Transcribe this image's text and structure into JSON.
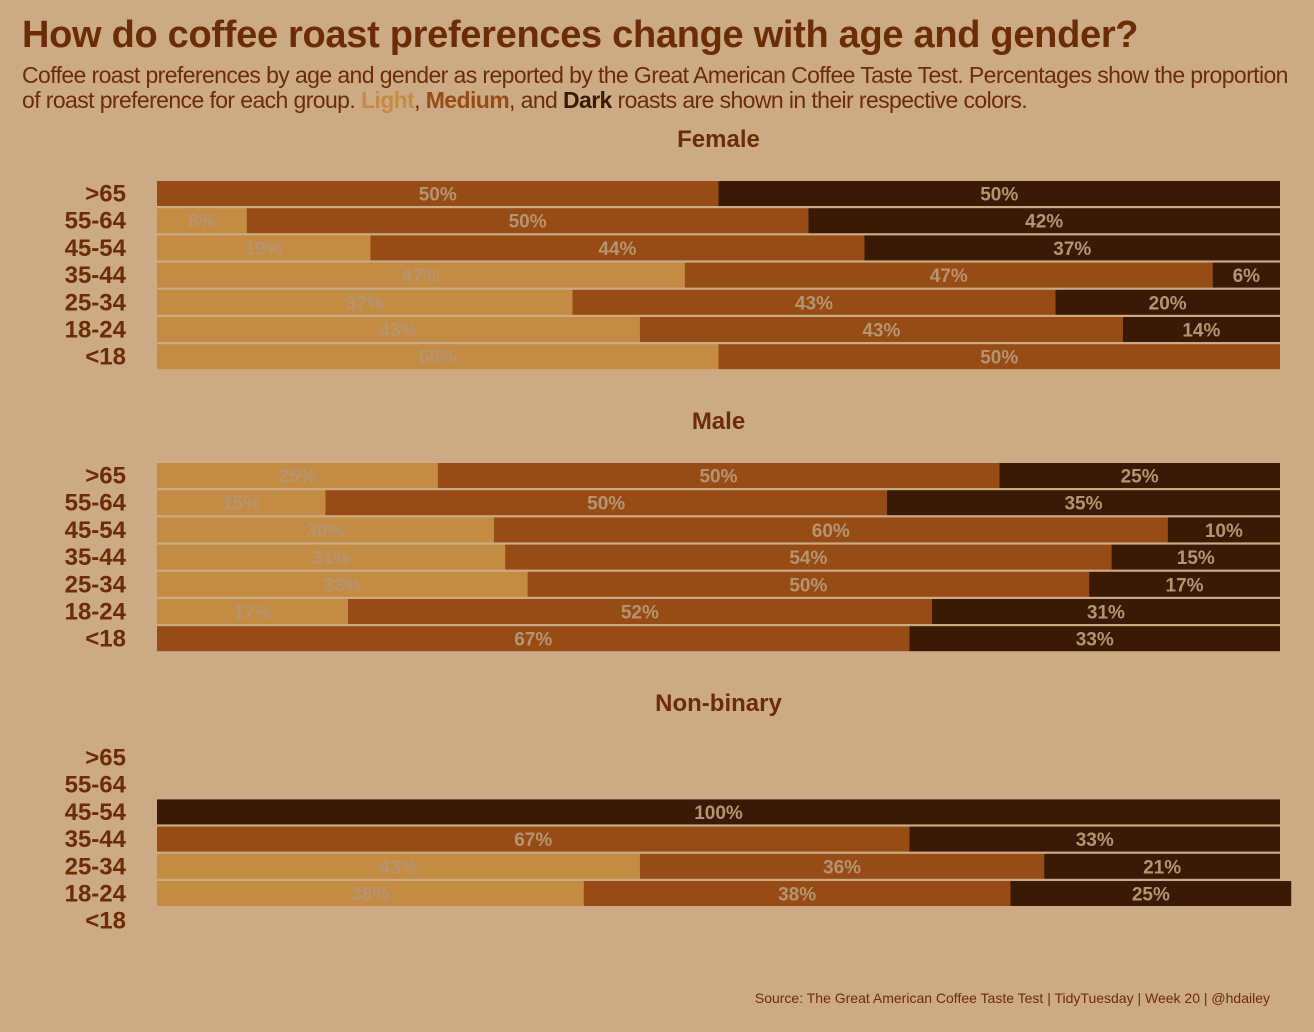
{
  "title": "How do coffee roast preferences change with age and gender?",
  "subtitle": {
    "line_start": "Coffee roast preferences by age and gender as reported by the Great American Coffee Taste Test. Percentages show the proportion of roast preference for each group. ",
    "light": "Light",
    "sep1": ", ",
    "medium": "Medium",
    "sep2": ", and ",
    "dark": "Dark",
    "line_end": " roasts are shown in their respective colors."
  },
  "caption": "Source: The Great American Coffee Taste Test | TidyTuesday | Week 20 | @hdailey",
  "colors": {
    "background": "#ccab84",
    "Light": "#c48c42",
    "Medium": "#974c16",
    "Dark": "#3a1a06",
    "text": "#6b2c06",
    "label": "#b79470"
  },
  "chart_data": {
    "type": "bar",
    "orientation": "horizontal-stacked-100",
    "roasts": [
      "Light",
      "Medium",
      "Dark"
    ],
    "categories": [
      ">65",
      "55-64",
      "45-54",
      "35-44",
      "25-34",
      "18-24",
      "<18"
    ],
    "facets": [
      {
        "title": "Female",
        "rows": [
          {
            "age": ">65",
            "values": [
              0,
              50,
              50
            ]
          },
          {
            "age": "55-64",
            "values": [
              8,
              50,
              42
            ]
          },
          {
            "age": "45-54",
            "values": [
              19,
              44,
              37
            ]
          },
          {
            "age": "35-44",
            "values": [
              47,
              47,
              6
            ]
          },
          {
            "age": "25-34",
            "values": [
              37,
              43,
              20
            ]
          },
          {
            "age": "18-24",
            "values": [
              43,
              43,
              14
            ]
          },
          {
            "age": "<18",
            "values": [
              50,
              50,
              0
            ]
          }
        ]
      },
      {
        "title": "Male",
        "rows": [
          {
            "age": ">65",
            "values": [
              25,
              50,
              25
            ]
          },
          {
            "age": "55-64",
            "values": [
              15,
              50,
              35
            ]
          },
          {
            "age": "45-54",
            "values": [
              30,
              60,
              10
            ]
          },
          {
            "age": "35-44",
            "values": [
              31,
              54,
              15
            ]
          },
          {
            "age": "25-34",
            "values": [
              33,
              50,
              17
            ]
          },
          {
            "age": "18-24",
            "values": [
              17,
              52,
              31
            ]
          },
          {
            "age": "<18",
            "values": [
              0,
              67,
              33
            ]
          }
        ]
      },
      {
        "title": "Non-binary",
        "rows": [
          {
            "age": ">65",
            "values": null
          },
          {
            "age": "55-64",
            "values": null
          },
          {
            "age": "45-54",
            "values": [
              0,
              0,
              100
            ]
          },
          {
            "age": "35-44",
            "values": [
              0,
              67,
              33
            ]
          },
          {
            "age": "25-34",
            "values": [
              43,
              36,
              21
            ]
          },
          {
            "age": "18-24",
            "values": [
              38,
              38,
              25
            ]
          },
          {
            "age": "<18",
            "values": null
          }
        ]
      }
    ]
  }
}
